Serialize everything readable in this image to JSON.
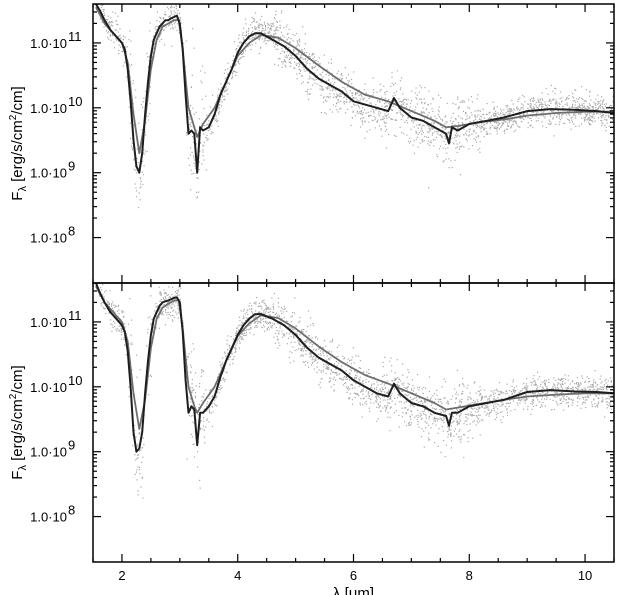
{
  "chart_data": [
    {
      "type": "line",
      "panel": "top",
      "xlabel": "",
      "ylabel_parts": {
        "base": "F",
        "sub": "λ",
        "rest": " [erg/s/cm",
        "sup": "2",
        "tail": "/cm]"
      },
      "xlim": [
        1.5,
        10.5
      ],
      "ylim_log10": [
        7.3,
        11.6
      ],
      "yscale": "log",
      "yticks": [
        {
          "log10": 8,
          "label": "1.0·10",
          "exp": "8"
        },
        {
          "log10": 9,
          "label": "1.0·10",
          "exp": "9"
        },
        {
          "log10": 10,
          "label": "1.0·10",
          "exp": "10"
        },
        {
          "log10": 11,
          "label": "1.0·10",
          "exp": "11"
        }
      ],
      "xticks": [
        2,
        4,
        6,
        8,
        10
      ],
      "grid": false,
      "legend": "none",
      "series": [
        {
          "kind": "model-dark",
          "color": "#1e1e1e",
          "x": [
            1.55,
            1.62,
            1.7,
            1.8,
            1.9,
            2.0,
            2.05,
            2.1,
            2.15,
            2.2,
            2.25,
            2.3,
            2.35,
            2.4,
            2.45,
            2.5,
            2.55,
            2.6,
            2.65,
            2.7,
            2.75,
            2.8,
            2.85,
            2.9,
            2.95,
            3.0,
            3.05,
            3.1,
            3.15,
            3.2,
            3.25,
            3.3,
            3.35,
            3.4,
            3.5,
            3.6,
            3.7,
            3.8,
            3.9,
            4.0,
            4.1,
            4.2,
            4.3,
            4.4,
            4.6,
            4.8,
            5.0,
            5.2,
            5.4,
            5.6,
            5.8,
            6.0,
            6.2,
            6.4,
            6.6,
            6.7,
            6.8,
            7.0,
            7.2,
            7.4,
            7.6,
            7.65,
            7.7,
            7.8,
            8.0,
            8.3,
            8.6,
            9.0,
            9.4,
            9.8,
            10.2,
            10.5
          ],
          "y": [
            11.6,
            11.5,
            11.35,
            11.2,
            11.1,
            11.0,
            10.9,
            10.6,
            10.1,
            9.5,
            9.1,
            9.0,
            9.3,
            9.9,
            10.4,
            10.8,
            11.05,
            11.15,
            11.25,
            11.3,
            11.35,
            11.35,
            11.38,
            11.4,
            11.42,
            11.3,
            10.9,
            10.2,
            9.6,
            9.65,
            9.6,
            9.0,
            9.7,
            9.65,
            9.7,
            9.9,
            10.2,
            10.4,
            10.6,
            10.85,
            11.0,
            11.1,
            11.15,
            11.15,
            11.05,
            10.95,
            10.8,
            10.6,
            10.45,
            10.35,
            10.25,
            10.1,
            10.05,
            10.0,
            9.95,
            10.15,
            10.0,
            9.85,
            9.8,
            9.7,
            9.6,
            9.45,
            9.7,
            9.65,
            9.75,
            9.8,
            9.85,
            9.95,
            9.98,
            9.97,
            9.95,
            9.92
          ]
        },
        {
          "kind": "model-grey",
          "color": "#6e6e6e",
          "x": [
            1.55,
            1.7,
            1.85,
            2.0,
            2.1,
            2.2,
            2.3,
            2.4,
            2.5,
            2.6,
            2.7,
            2.8,
            2.9,
            2.98,
            3.05,
            3.15,
            3.25,
            3.3,
            3.4,
            3.6,
            3.8,
            4.0,
            4.2,
            4.4,
            4.7,
            5.0,
            5.4,
            5.8,
            6.2,
            6.6,
            7.0,
            7.4,
            7.6,
            7.8,
            8.2,
            8.6,
            9.0,
            9.5,
            10.0,
            10.5
          ],
          "y": [
            11.55,
            11.3,
            11.15,
            11.0,
            10.7,
            9.9,
            9.3,
            9.8,
            10.6,
            11.05,
            11.25,
            11.3,
            11.35,
            11.35,
            10.9,
            10.0,
            9.7,
            9.55,
            9.75,
            10.0,
            10.4,
            10.8,
            11.0,
            11.12,
            11.08,
            10.92,
            10.65,
            10.4,
            10.2,
            10.1,
            9.95,
            9.8,
            9.7,
            9.72,
            9.78,
            9.82,
            9.88,
            9.92,
            9.94,
            9.94
          ]
        }
      ]
    },
    {
      "type": "line",
      "panel": "bottom",
      "xlabel_parts": {
        "base": "λ",
        "rest": " [μm]"
      },
      "ylabel_parts": {
        "base": "F",
        "sub": "λ",
        "rest": " [erg/s/cm",
        "sup": "2",
        "tail": "/cm]"
      },
      "xlim": [
        1.5,
        10.5
      ],
      "ylim_log10": [
        7.3,
        11.6
      ],
      "yscale": "log",
      "yticks": [
        {
          "log10": 8,
          "label": "1.0·10",
          "exp": "8"
        },
        {
          "log10": 9,
          "label": "1.0·10",
          "exp": "9"
        },
        {
          "log10": 10,
          "label": "1.0·10",
          "exp": "10"
        },
        {
          "log10": 11,
          "label": "1.0·10",
          "exp": "11"
        }
      ],
      "xticks": [
        2,
        4,
        6,
        8,
        10
      ],
      "grid": false,
      "legend": "none",
      "series": [
        {
          "kind": "model-dark",
          "color": "#1e1e1e",
          "x": [
            1.55,
            1.62,
            1.7,
            1.8,
            1.9,
            2.0,
            2.05,
            2.1,
            2.15,
            2.2,
            2.25,
            2.3,
            2.35,
            2.4,
            2.45,
            2.5,
            2.55,
            2.6,
            2.65,
            2.7,
            2.75,
            2.8,
            2.85,
            2.9,
            2.95,
            3.0,
            3.05,
            3.1,
            3.15,
            3.2,
            3.25,
            3.3,
            3.35,
            3.4,
            3.5,
            3.6,
            3.7,
            3.8,
            3.9,
            4.0,
            4.1,
            4.2,
            4.3,
            4.4,
            4.6,
            4.8,
            5.0,
            5.2,
            5.4,
            5.6,
            5.8,
            6.0,
            6.2,
            6.4,
            6.6,
            6.7,
            6.8,
            7.0,
            7.2,
            7.4,
            7.6,
            7.65,
            7.7,
            7.8,
            8.0,
            8.3,
            8.6,
            9.0,
            9.4,
            9.8,
            10.2,
            10.5
          ],
          "y": [
            11.6,
            11.45,
            11.3,
            11.15,
            11.05,
            10.95,
            10.85,
            10.55,
            10.0,
            9.3,
            9.0,
            9.05,
            9.3,
            9.9,
            10.4,
            10.8,
            11.05,
            11.15,
            11.25,
            11.3,
            11.32,
            11.33,
            11.35,
            11.37,
            11.38,
            11.3,
            10.85,
            10.1,
            9.6,
            9.7,
            9.65,
            9.1,
            9.6,
            9.6,
            9.7,
            9.85,
            10.15,
            10.4,
            10.6,
            10.8,
            10.95,
            11.05,
            11.12,
            11.12,
            11.05,
            10.95,
            10.8,
            10.6,
            10.45,
            10.35,
            10.25,
            10.1,
            10.0,
            9.9,
            9.85,
            10.05,
            9.9,
            9.75,
            9.7,
            9.6,
            9.55,
            9.4,
            9.6,
            9.6,
            9.7,
            9.75,
            9.8,
            9.92,
            9.95,
            9.93,
            9.92,
            9.9
          ]
        },
        {
          "kind": "model-grey",
          "color": "#6e6e6e",
          "x": [
            1.55,
            1.7,
            1.85,
            2.0,
            2.1,
            2.2,
            2.3,
            2.4,
            2.5,
            2.6,
            2.7,
            2.8,
            2.9,
            2.98,
            3.05,
            3.15,
            3.25,
            3.3,
            3.4,
            3.6,
            3.8,
            4.0,
            4.2,
            4.4,
            4.7,
            5.0,
            5.4,
            5.8,
            6.2,
            6.6,
            7.0,
            7.4,
            7.6,
            7.8,
            8.2,
            8.6,
            9.0,
            9.5,
            10.0,
            10.5
          ],
          "y": [
            11.55,
            11.3,
            11.15,
            11.0,
            10.7,
            9.9,
            9.35,
            9.8,
            10.6,
            11.05,
            11.22,
            11.28,
            11.33,
            11.33,
            10.9,
            10.0,
            9.7,
            9.6,
            9.75,
            10.0,
            10.4,
            10.78,
            10.98,
            11.1,
            11.06,
            10.9,
            10.62,
            10.38,
            10.18,
            10.05,
            9.9,
            9.75,
            9.65,
            9.68,
            9.74,
            9.8,
            9.85,
            9.88,
            9.9,
            9.9
          ]
        }
      ]
    }
  ],
  "colors": {
    "data_points": "#aaaaaa",
    "model_dark": "#1e1e1e",
    "model_grey": "#6e6e6e",
    "axes": "#000000"
  }
}
